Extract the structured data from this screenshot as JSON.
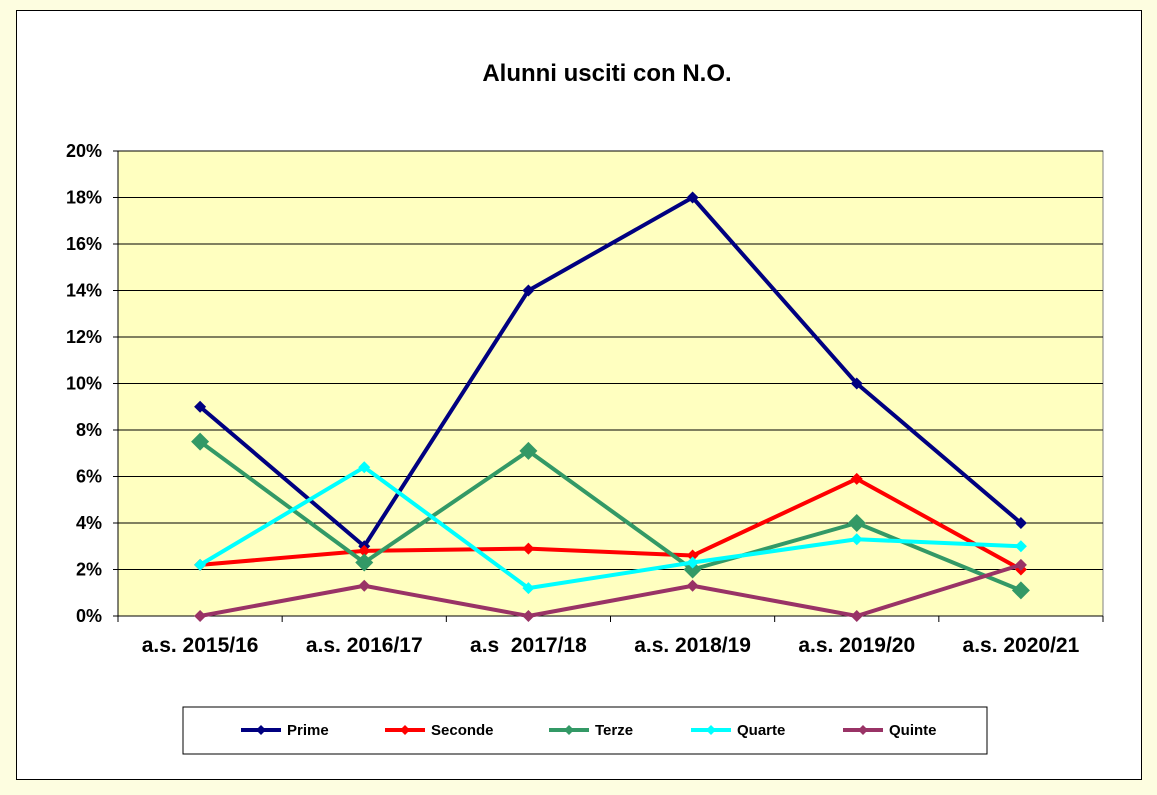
{
  "chart_data": {
    "type": "line",
    "title": "Alunni usciti con N.O.",
    "categories": [
      "a.s. 2015/16",
      "a.s. 2016/17",
      "a.s  2017/18",
      "a.s. 2018/19",
      "a.s. 2019/20",
      "a.s. 2020/21"
    ],
    "y_ticks": [
      "0%",
      "2%",
      "4%",
      "6%",
      "8%",
      "10%",
      "12%",
      "14%",
      "16%",
      "18%",
      "20%"
    ],
    "ylim": [
      0,
      20
    ],
    "unit": "%",
    "grid": true,
    "legend_position": "bottom",
    "plot_background": "#ffffc0",
    "series": [
      {
        "name": "Prime",
        "color": "#000080",
        "marker_size": "small",
        "values": [
          9.0,
          3.0,
          14.0,
          18.0,
          10.0,
          4.0
        ]
      },
      {
        "name": "Seconde",
        "color": "#ff0000",
        "marker_size": "small",
        "values": [
          2.2,
          2.8,
          2.9,
          2.6,
          5.9,
          2.0
        ]
      },
      {
        "name": "Terze",
        "color": "#339966",
        "marker_size": "large",
        "values": [
          7.5,
          2.3,
          7.1,
          2.0,
          4.0,
          1.1
        ]
      },
      {
        "name": "Quarte",
        "color": "#00ffff",
        "marker_size": "small",
        "values": [
          2.2,
          6.4,
          1.2,
          2.3,
          3.3,
          3.0
        ]
      },
      {
        "name": "Quinte",
        "color": "#993366",
        "marker_size": "small",
        "values": [
          0.0,
          1.3,
          0.0,
          1.3,
          0.0,
          2.2
        ]
      }
    ]
  }
}
